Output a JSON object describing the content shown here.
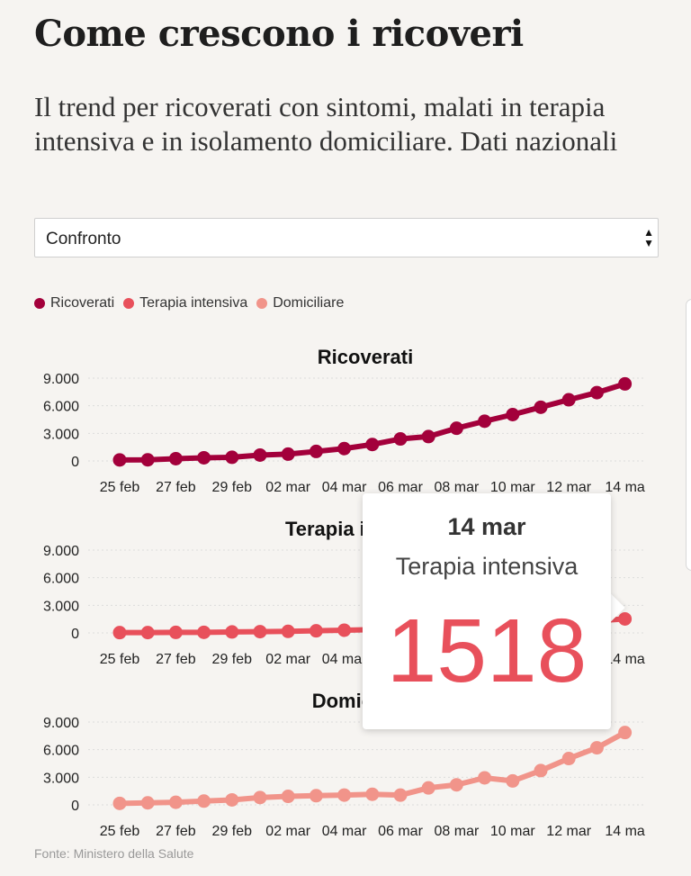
{
  "title": "Come crescono i ricoveri",
  "subtitle": "Il trend per ricoverati con sintomi, malati in terapia intensiva e in isolamento domiciliare. Dati nazionali",
  "selector": {
    "value": "Confronto",
    "arrows": "▲▼"
  },
  "legend": [
    {
      "label": "Ricoverati",
      "color": "#a3003b"
    },
    {
      "label": "Terapia intensiva",
      "color": "#e8505b"
    },
    {
      "label": "Domiciliare",
      "color": "#f1948a"
    }
  ],
  "tooltip": {
    "date": "14 mar",
    "series": "Terapia intensiva",
    "value": "1518"
  },
  "source": "Fonte: Ministero della Salute",
  "chart_data": [
    {
      "type": "line",
      "title": "Ricoverati",
      "color": "#a3003b",
      "x": [
        "25 feb",
        "26 feb",
        "27 feb",
        "28 feb",
        "29 feb",
        "01 mar",
        "02 mar",
        "03 mar",
        "04 mar",
        "05 mar",
        "06 mar",
        "07 mar",
        "08 mar",
        "09 mar",
        "10 mar",
        "11 mar",
        "12 mar",
        "13 mar",
        "14 mar"
      ],
      "x_tick_labels": [
        "25 feb",
        "27 feb",
        "29 feb",
        "02 mar",
        "04 mar",
        "06 mar",
        "08 mar",
        "10 mar",
        "12 mar",
        "14 ma"
      ],
      "y_tick_labels": [
        "0",
        "3.000",
        "6.000",
        "9.000"
      ],
      "values": [
        114,
        128,
        248,
        345,
        401,
        639,
        742,
        1034,
        1346,
        1790,
        2394,
        2651,
        3557,
        4316,
        5038,
        5838,
        6650,
        7426,
        8372
      ],
      "ylim": [
        0,
        9000
      ],
      "grid": true
    },
    {
      "type": "line",
      "title": "Terapia intensiva",
      "color": "#e8505b",
      "x": [
        "25 feb",
        "26 feb",
        "27 feb",
        "28 feb",
        "29 feb",
        "01 mar",
        "02 mar",
        "03 mar",
        "04 mar",
        "05 mar",
        "06 mar",
        "07 mar",
        "08 mar",
        "09 mar",
        "10 mar",
        "11 mar",
        "12 mar",
        "13 mar",
        "14 mar"
      ],
      "x_tick_labels": [
        "25 feb",
        "27 feb",
        "29 feb",
        "02 mar",
        "04 mar",
        "06 mar",
        "08 mar",
        "10 mar",
        "12 mar",
        "14 ma"
      ],
      "y_tick_labels": [
        "0",
        "3.000",
        "6.000",
        "9.000"
      ],
      "values": [
        35,
        36,
        56,
        64,
        105,
        140,
        166,
        229,
        295,
        351,
        462,
        567,
        650,
        733,
        877,
        1028,
        1153,
        1328,
        1518
      ],
      "ylim": [
        0,
        9000
      ],
      "grid": true
    },
    {
      "type": "line",
      "title": "Domiciliare",
      "color": "#f1948a",
      "x": [
        "25 feb",
        "26 feb",
        "27 feb",
        "28 feb",
        "29 feb",
        "01 mar",
        "02 mar",
        "03 mar",
        "04 mar",
        "05 mar",
        "06 mar",
        "07 mar",
        "08 mar",
        "09 mar",
        "10 mar",
        "11 mar",
        "12 mar",
        "13 mar",
        "14 mar"
      ],
      "x_tick_labels": [
        "25 feb",
        "27 feb",
        "29 feb",
        "02 mar",
        "04 mar",
        "06 mar",
        "08 mar",
        "10 mar",
        "12 mar",
        "14 ma"
      ],
      "y_tick_labels": [
        "0",
        "3.000",
        "6.000",
        "9.000"
      ],
      "values": [
        162,
        221,
        284,
        412,
        543,
        798,
        927,
        1000,
        1065,
        1155,
        1060,
        1843,
        2180,
        2936,
        2599,
        3724,
        5036,
        6201,
        7860
      ],
      "ylim": [
        0,
        9000
      ],
      "grid": true
    }
  ]
}
